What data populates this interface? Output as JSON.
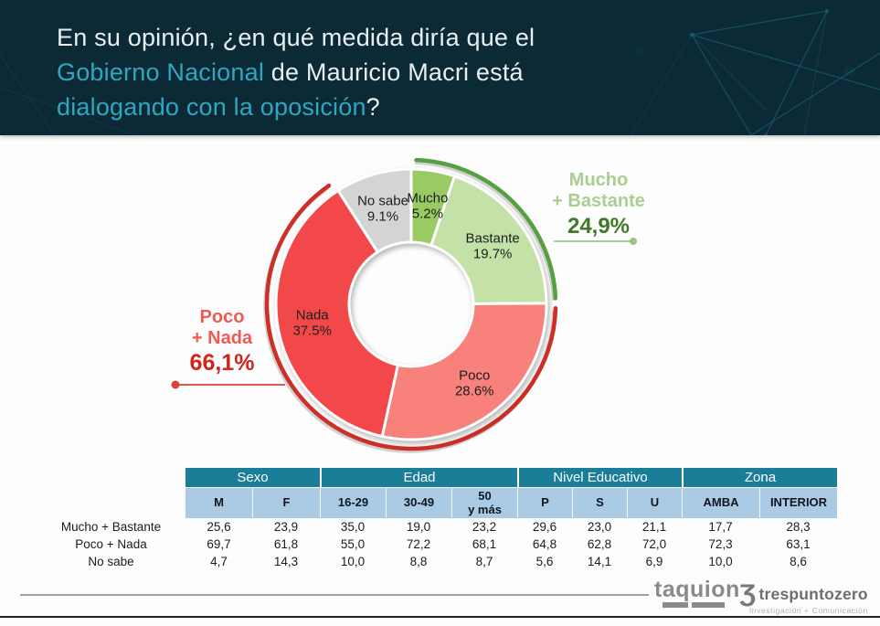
{
  "header": {
    "line1": "En su opinión, ¿en qué medida diría que el",
    "line2_em": "Gobierno Nacional",
    "line2_rest": " de Mauricio Macri está",
    "line3_em": "dialogando con la oposición",
    "line3_q": "?",
    "bg_color": "#0b2a36",
    "highlight_color": "#2fa7c3",
    "text_color": "#e9eff1"
  },
  "chart_data": {
    "type": "pie",
    "subtype": "donut",
    "title": "En su opinión, ¿en qué medida diría que el Gobierno Nacional de Mauricio Macri está dialogando con la oposición?",
    "start_angle_deg": 0,
    "direction": "clockwise",
    "segments": [
      {
        "label": "Mucho",
        "value": 5.2,
        "display": "5.2%",
        "color": "#99ca63"
      },
      {
        "label": "Bastante",
        "value": 19.7,
        "display": "19.7%",
        "color": "#c4e2a8"
      },
      {
        "label": "Poco",
        "value": 28.6,
        "display": "28.6%",
        "color": "#f8817c"
      },
      {
        "label": "Nada",
        "value": 37.5,
        "display": "37.5%",
        "color": "#f2484a"
      },
      {
        "label": "No sabe",
        "value": 9.1,
        "display": "9.1%",
        "color": "#d4d4d4"
      }
    ],
    "callouts": [
      {
        "line1": "Mucho",
        "line2": "+ Bastante",
        "value": 24.9,
        "value_display": "24,9%",
        "side": "right",
        "covers": [
          0,
          1
        ],
        "label_color": "#a8cf90",
        "value_color": "#3e7a27",
        "leader_color": "#9cc487",
        "arc_color": "#55a041"
      },
      {
        "line1": "Poco",
        "line2": "+ Nada",
        "value": 66.1,
        "value_display": "66,1%",
        "side": "left",
        "covers": [
          2,
          3
        ],
        "label_color": "#f05a52",
        "value_color": "#d1251c",
        "leader_color": "#d6453c",
        "arc_color": "#ce2f26"
      }
    ]
  },
  "table": {
    "groups": [
      {
        "label": "Sexo",
        "span": 2
      },
      {
        "label": "Edad",
        "span": 3
      },
      {
        "label": "Nivel Educativo",
        "span": 3
      },
      {
        "label": "Zona",
        "span": 2
      }
    ],
    "columns": [
      "M",
      "F",
      "16-29",
      "30-49",
      "50\ny más",
      "P",
      "S",
      "U",
      "AMBA",
      "INTERIOR"
    ],
    "rows": [
      {
        "label": "Mucho + Bastante",
        "values": [
          "25,6",
          "23,9",
          "35,0",
          "19,0",
          "23,2",
          "29,6",
          "23,0",
          "21,1",
          "17,7",
          "28,3"
        ]
      },
      {
        "label": "Poco + Nada",
        "values": [
          "69,7",
          "61,8",
          "55,0",
          "72,2",
          "68,1",
          "64,8",
          "62,8",
          "72,0",
          "72,3",
          "63,1"
        ]
      },
      {
        "label": "No sabe",
        "values": [
          "4,7",
          "14,3",
          "10,0",
          "8,8",
          "8,7",
          "5,6",
          "14,1",
          "6,9",
          "10,0",
          "8,6"
        ]
      }
    ],
    "group_header_color": "#1b7e99",
    "subheader_color": "#abcae4"
  },
  "footer": {
    "taquion_text": "taquion",
    "tpz_glyph": "Ʒ",
    "tpz_name": "trespuntozero",
    "tpz_tagline": "Investigación + Comunicación"
  }
}
